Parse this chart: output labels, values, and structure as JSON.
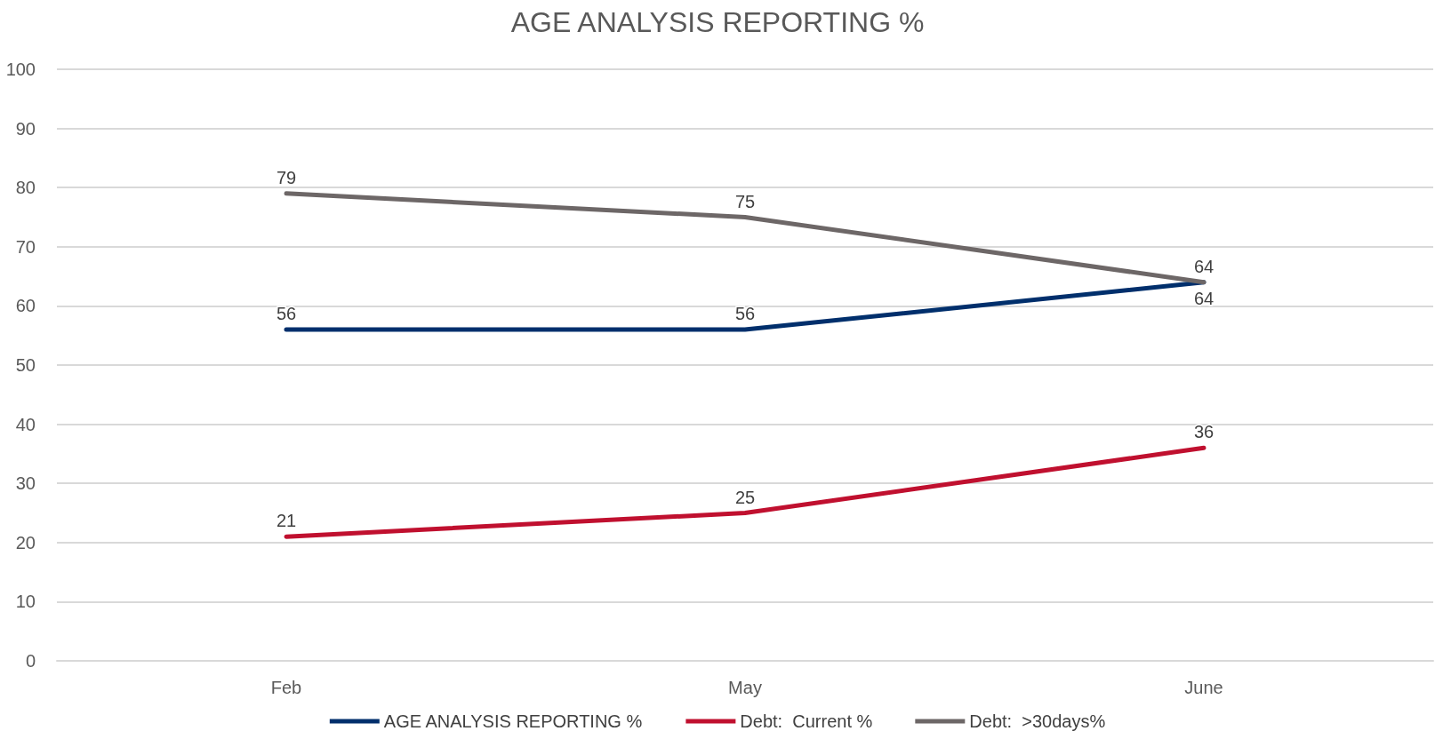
{
  "chart_data": {
    "type": "line",
    "title": "AGE ANALYSIS REPORTING %",
    "categories": [
      "Feb",
      "May",
      "June"
    ],
    "series": [
      {
        "name": "AGE ANALYSIS REPORTING %",
        "color": "#002f6c",
        "values": [
          56,
          56,
          64
        ]
      },
      {
        "name": "Debt:  Current %",
        "color": "#c0102f",
        "values": [
          21,
          25,
          36
        ]
      },
      {
        "name": "Debt:  >30days%",
        "color": "#6d6767",
        "values": [
          79,
          75,
          64
        ]
      }
    ],
    "ylim": [
      0,
      100
    ],
    "yticks": [
      0,
      10,
      20,
      30,
      40,
      50,
      60,
      70,
      80,
      90,
      100
    ],
    "grid": "y",
    "legend": "bottom",
    "marker": "none",
    "line_style": "solid",
    "data_labels": true
  }
}
